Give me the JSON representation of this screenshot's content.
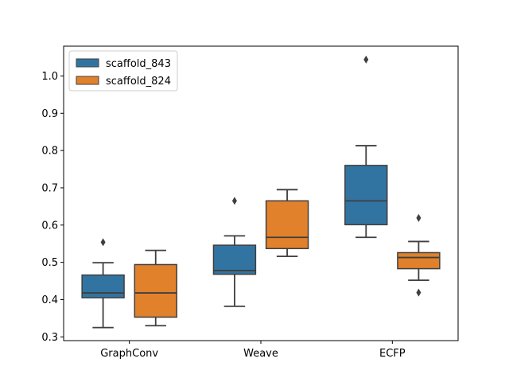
{
  "chart_data": {
    "type": "boxplot",
    "title": "",
    "xlabel": "",
    "ylabel": "",
    "categories": [
      "GraphConv",
      "Weave",
      "ECFP"
    ],
    "ylim": [
      0.29,
      1.08
    ],
    "yticks": [
      0.3,
      0.4,
      0.5,
      0.6,
      0.7,
      0.8,
      0.9,
      1.0
    ],
    "ytick_labels": [
      "0.3",
      "0.4",
      "0.5",
      "0.6",
      "0.7",
      "0.8",
      "0.9",
      "1.0"
    ],
    "grid": false,
    "legend_position": "top-left",
    "series": [
      {
        "name": "scaffold_843",
        "color": "#3274a1",
        "boxes": [
          {
            "whisker_low": 0.325,
            "q1": 0.405,
            "median": 0.418,
            "q3": 0.466,
            "whisker_high": 0.499,
            "outliers": [
              0.554
            ]
          },
          {
            "whisker_low": 0.382,
            "q1": 0.468,
            "median": 0.478,
            "q3": 0.546,
            "whisker_high": 0.571,
            "outliers": [
              0.665
            ]
          },
          {
            "whisker_low": 0.567,
            "q1": 0.601,
            "median": 0.665,
            "q3": 0.76,
            "whisker_high": 0.813,
            "outliers": [
              1.044
            ]
          }
        ]
      },
      {
        "name": "scaffold_824",
        "color": "#e1812c",
        "boxes": [
          {
            "whisker_low": 0.33,
            "q1": 0.353,
            "median": 0.418,
            "q3": 0.494,
            "whisker_high": 0.532,
            "outliers": []
          },
          {
            "whisker_low": 0.516,
            "q1": 0.537,
            "median": 0.567,
            "q3": 0.665,
            "whisker_high": 0.695,
            "outliers": []
          },
          {
            "whisker_low": 0.452,
            "q1": 0.483,
            "median": 0.513,
            "q3": 0.526,
            "whisker_high": 0.556,
            "outliers": [
              0.619,
              0.419
            ]
          }
        ]
      }
    ]
  }
}
